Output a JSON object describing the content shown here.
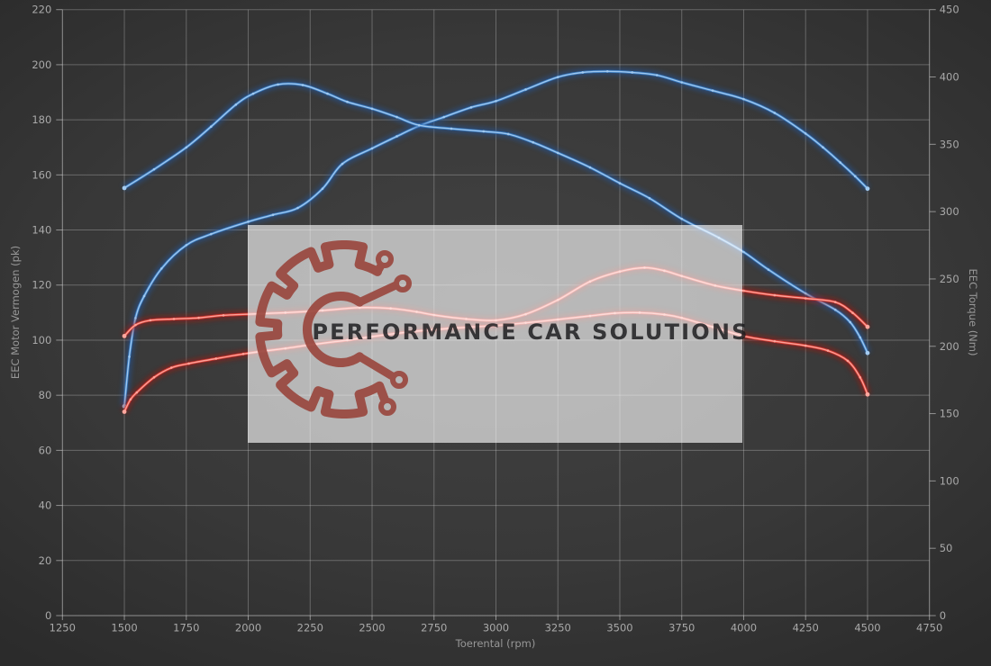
{
  "watermark": {
    "text": "PERFORMANCE CAR SOLUTIONS"
  },
  "axes": {
    "x": {
      "title": "Toerental (rpm)",
      "min": 1250,
      "max": 4750,
      "tick_step": 250,
      "ticks": [
        1250,
        1500,
        1750,
        2000,
        2250,
        2500,
        2750,
        3000,
        3250,
        3500,
        3750,
        4000,
        4250,
        4500,
        4750
      ]
    },
    "y_left": {
      "title": "EEC Motor Vermogen (pk)",
      "min": 0,
      "max": 220,
      "tick_step": 20,
      "ticks": [
        0,
        20,
        40,
        60,
        80,
        100,
        120,
        140,
        160,
        180,
        200,
        220
      ]
    },
    "y_right": {
      "title": "EEC Torque (Nm)",
      "min": 0,
      "max": 450,
      "tick_step": 50,
      "ticks": [
        0,
        50,
        100,
        150,
        200,
        250,
        300,
        350,
        400,
        450
      ]
    }
  },
  "chart_data": {
    "type": "line",
    "xlabel": "Toerental (rpm)",
    "ylabel_left": "EEC Motor Vermogen (pk)",
    "ylabel_right": "EEC Torque (Nm)",
    "x_range": [
      1250,
      4750
    ],
    "y_left_range": [
      0,
      220
    ],
    "y_right_range": [
      0,
      450
    ],
    "grid": true,
    "legend": "none",
    "point_markers": true,
    "series": [
      {
        "id": "power-blue",
        "palette": "blue",
        "axis": "left",
        "unit": "pk",
        "points": [
          [
            1500,
            76
          ],
          [
            1520,
            94
          ],
          [
            1545,
            108
          ],
          [
            1580,
            116
          ],
          [
            1650,
            126
          ],
          [
            1750,
            134.5
          ],
          [
            1850,
            138.5
          ],
          [
            2000,
            143
          ],
          [
            2100,
            145.5
          ],
          [
            2200,
            148
          ],
          [
            2300,
            155
          ],
          [
            2380,
            164
          ],
          [
            2500,
            169.6
          ],
          [
            2600,
            174
          ],
          [
            2690,
            177.8
          ],
          [
            2790,
            181
          ],
          [
            2900,
            184.5
          ],
          [
            3000,
            186.8
          ],
          [
            3120,
            191
          ],
          [
            3250,
            195.5
          ],
          [
            3350,
            197.2
          ],
          [
            3450,
            197.6
          ],
          [
            3550,
            197.2
          ],
          [
            3650,
            196.2
          ],
          [
            3750,
            193.6
          ],
          [
            3875,
            190.6
          ],
          [
            4000,
            187.5
          ],
          [
            4125,
            182.5
          ],
          [
            4250,
            175
          ],
          [
            4320,
            170
          ],
          [
            4390,
            164.5
          ],
          [
            4450,
            159.5
          ],
          [
            4500,
            155
          ]
        ]
      },
      {
        "id": "torque-blue",
        "palette": "blue",
        "axis": "right",
        "unit": "Nm",
        "points": [
          [
            1500,
            317.5
          ],
          [
            1620,
            331.4
          ],
          [
            1750,
            347.7
          ],
          [
            1850,
            363.1
          ],
          [
            1950,
            379.4
          ],
          [
            2020,
            387.6
          ],
          [
            2120,
            394.4
          ],
          [
            2220,
            394.0
          ],
          [
            2320,
            387.6
          ],
          [
            2400,
            381.5
          ],
          [
            2500,
            376.4
          ],
          [
            2600,
            370.2
          ],
          [
            2690,
            364.1
          ],
          [
            2820,
            361.6
          ],
          [
            2950,
            359.6
          ],
          [
            3050,
            357.6
          ],
          [
            3150,
            351.4
          ],
          [
            3250,
            343.6
          ],
          [
            3380,
            332.8
          ],
          [
            3500,
            321.1
          ],
          [
            3620,
            309.9
          ],
          [
            3750,
            294.6
          ],
          [
            3900,
            280.6
          ],
          [
            4000,
            270.0
          ],
          [
            4100,
            256.9
          ],
          [
            4250,
            239.2
          ],
          [
            4370,
            227.1
          ],
          [
            4430,
            217.9
          ],
          [
            4470,
            206.6
          ],
          [
            4500,
            195.0
          ]
        ]
      },
      {
        "id": "power-red",
        "palette": "red",
        "axis": "left",
        "unit": "pk",
        "points": [
          [
            1500,
            74
          ],
          [
            1525,
            78.5
          ],
          [
            1550,
            81
          ],
          [
            1620,
            86.5
          ],
          [
            1690,
            90
          ],
          [
            1760,
            91.5
          ],
          [
            1870,
            93.3
          ],
          [
            1980,
            95
          ],
          [
            2060,
            96
          ],
          [
            2150,
            97
          ],
          [
            2250,
            98.3
          ],
          [
            2400,
            100
          ],
          [
            2500,
            101.3
          ],
          [
            2650,
            103
          ],
          [
            2750,
            103.8
          ],
          [
            2900,
            104.8
          ],
          [
            3000,
            105.3
          ],
          [
            3120,
            106.3
          ],
          [
            3250,
            107.5
          ],
          [
            3380,
            108.8
          ],
          [
            3480,
            109.8
          ],
          [
            3580,
            110
          ],
          [
            3680,
            109.3
          ],
          [
            3750,
            108.1
          ],
          [
            3875,
            104.8
          ],
          [
            4000,
            101.5
          ],
          [
            4125,
            99.6
          ],
          [
            4250,
            98
          ],
          [
            4340,
            96.2
          ],
          [
            4420,
            92.5
          ],
          [
            4470,
            86.5
          ],
          [
            4500,
            80.3
          ]
        ]
      },
      {
        "id": "torque-red",
        "palette": "red",
        "axis": "right",
        "unit": "Nm",
        "points": [
          [
            1500,
            207.6
          ],
          [
            1545,
            215.8
          ],
          [
            1605,
            219.3
          ],
          [
            1700,
            220.3
          ],
          [
            1800,
            221.1
          ],
          [
            1900,
            223.0
          ],
          [
            2055,
            224.2
          ],
          [
            2150,
            225.0
          ],
          [
            2300,
            226.6
          ],
          [
            2450,
            228.7
          ],
          [
            2575,
            228.1
          ],
          [
            2680,
            225.6
          ],
          [
            2750,
            223.2
          ],
          [
            2880,
            220.3
          ],
          [
            3000,
            219.3
          ],
          [
            3120,
            223.8
          ],
          [
            3250,
            234.4
          ],
          [
            3380,
            248.1
          ],
          [
            3500,
            255.5
          ],
          [
            3600,
            258.4
          ],
          [
            3680,
            256.1
          ],
          [
            3750,
            252.2
          ],
          [
            3885,
            245.1
          ],
          [
            4000,
            241.2
          ],
          [
            4125,
            237.9
          ],
          [
            4250,
            235.6
          ],
          [
            4370,
            232.8
          ],
          [
            4440,
            224.8
          ],
          [
            4500,
            214.4
          ]
        ]
      }
    ]
  },
  "colors": {
    "grid": "rgba(212,212,212,0.32)",
    "axis_line": "rgba(222,222,222,0.55)",
    "tick_text": "#a9a9a9",
    "axis_title_text": "#979797",
    "blue_glow": "#2257a0",
    "blue_mid": "#3a7ec6",
    "blue_core": "#a3cbf1",
    "red_glow": "#a31310",
    "red_mid": "#df3b33",
    "red_core": "#ffa79e",
    "watermark_box": "rgba(255,255,255,0.63)",
    "logo": "#99453c",
    "watermark_text": "rgba(28,28,30,0.84)"
  }
}
